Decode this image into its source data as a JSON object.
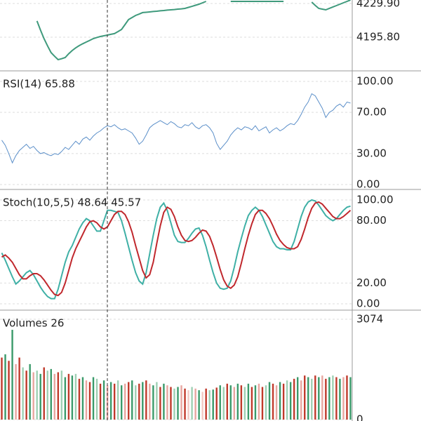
{
  "chart_data": [
    {
      "type": "line",
      "categories": [
        null,
        null,
        null,
        null,
        null,
        null,
        null,
        null,
        null,
        null,
        null,
        null,
        null,
        null,
        null,
        null,
        null,
        null,
        null,
        null,
        null,
        null,
        null,
        null,
        null,
        null,
        null,
        null,
        null,
        null,
        null,
        null,
        null,
        null,
        null,
        null,
        null,
        null,
        null,
        null,
        null,
        null,
        null,
        null,
        null,
        null,
        null,
        null,
        null,
        null,
        null,
        null,
        null,
        null,
        null,
        null,
        null,
        null,
        null,
        null,
        null,
        null,
        null,
        null,
        null,
        null,
        null,
        null,
        null,
        null,
        null,
        null,
        null,
        null,
        null,
        null,
        null,
        null,
        null,
        null,
        null,
        null,
        null,
        null,
        null,
        null,
        null,
        null,
        null,
        null,
        null,
        null,
        null,
        null,
        null,
        null,
        null,
        null,
        null,
        null
      ],
      "series": [
        {
          "color": "#3f9a7c",
          "values": [
            null,
            null,
            null,
            null,
            null,
            null,
            null,
            null,
            null,
            null,
            4212.2,
            4203.0,
            4194.4,
            4187.0,
            4180.2,
            4176.5,
            4173.1,
            4174.0,
            4175.2,
            4179.0,
            4182.3,
            4185.0,
            4187.3,
            4189.2,
            4190.9,
            4192.6,
            4194.4,
            4195.5,
            4196.5,
            4197.2,
            4197.9,
            4198.7,
            4199.4,
            4201.5,
            4203.6,
            4208.6,
            4213.6,
            4215.7,
            4217.8,
            4219.2,
            4220.7,
            4221.0,
            4221.4,
            4221.8,
            4222.1,
            4222.5,
            4222.8,
            4223.2,
            4223.5,
            4223.8,
            4224.2,
            4224.5,
            4224.9,
            4226.0,
            4227.0,
            4228.1,
            4229.2,
            4230.6,
            4232.0,
            null,
            null,
            null,
            null,
            null,
            null,
            4232.0,
            4232.0,
            4232.0,
            4232.0,
            4232.0,
            4232.0,
            4232.0,
            4232.0,
            4232.0,
            4232.0,
            4232.0,
            4232.0,
            4232.0,
            4232.0,
            4232.0,
            4232.0,
            null,
            null,
            null,
            null,
            null,
            null,
            null,
            4231.3,
            4228.0,
            4224.9,
            4224.2,
            4223.5,
            4225.0,
            4226.4,
            4227.8,
            4229.2,
            4230.6,
            4232.0,
            4233.4
          ]
        }
      ],
      "ylim": [
        4161.7,
        4233.45
      ],
      "yticks": [
        {
          "value": 4229.9,
          "label": "4229.90"
        },
        {
          "value": 4195.8,
          "label": "4195.80"
        }
      ]
    },
    {
      "type": "line",
      "title": "RSI(14) 65.88",
      "categories": [
        null,
        null,
        null,
        null,
        null,
        null,
        null,
        null,
        null,
        null,
        null,
        null,
        null,
        null,
        null,
        null,
        null,
        null,
        null,
        null,
        null,
        null,
        null,
        null,
        null,
        null,
        null,
        null,
        null,
        null,
        null,
        null,
        null,
        null,
        null,
        null,
        null,
        null,
        null,
        null,
        null,
        null,
        null,
        null,
        null,
        null,
        null,
        null,
        null,
        null,
        null,
        null,
        null,
        null,
        null,
        null,
        null,
        null,
        null,
        null,
        null,
        null,
        null,
        null,
        null,
        null,
        null,
        null,
        null,
        null,
        null,
        null,
        null,
        null,
        null,
        null,
        null,
        null,
        null,
        null,
        null,
        null,
        null,
        null,
        null,
        null,
        null,
        null,
        null,
        null,
        null,
        null,
        null,
        null,
        null,
        null,
        null,
        null,
        null,
        null
      ],
      "series": [
        {
          "color": "#5b8fc9",
          "values": [
            43,
            38,
            30,
            21,
            28,
            33,
            36,
            39,
            35,
            37,
            33,
            30,
            31,
            29,
            28,
            30,
            29,
            32,
            36,
            34,
            38,
            42,
            39,
            44,
            46,
            43,
            47,
            50,
            52,
            55,
            57,
            56,
            58,
            55,
            53,
            54,
            52,
            50,
            45,
            39,
            42,
            48,
            55,
            58,
            60,
            62,
            60,
            58,
            61,
            59,
            56,
            55,
            58,
            57,
            60,
            56,
            54,
            57,
            58,
            55,
            50,
            40,
            34,
            38,
            42,
            48,
            52,
            55,
            53,
            56,
            55,
            53,
            57,
            52,
            54,
            56,
            50,
            53,
            55,
            52,
            54,
            57,
            59,
            58,
            62,
            68,
            75,
            80,
            88,
            86,
            80,
            74,
            65,
            70,
            72,
            76,
            78,
            75,
            80,
            79
          ]
        }
      ],
      "ylim": [
        -4.8,
        110.2
      ],
      "yticks": [
        {
          "value": 100,
          "label": "100.00"
        },
        {
          "value": 70,
          "label": "70.00"
        },
        {
          "value": 30,
          "label": "30.00"
        },
        {
          "value": 0,
          "label": "0.00"
        }
      ]
    },
    {
      "type": "line",
      "title": "Stoch(10,5,5) 48.64 45.57",
      "categories": [
        null,
        null,
        null,
        null,
        null,
        null,
        null,
        null,
        null,
        null,
        null,
        null,
        null,
        null,
        null,
        null,
        null,
        null,
        null,
        null,
        null,
        null,
        null,
        null,
        null,
        null,
        null,
        null,
        null,
        null,
        null,
        null,
        null,
        null,
        null,
        null,
        null,
        null,
        null,
        null,
        null,
        null,
        null,
        null,
        null,
        null,
        null,
        null,
        null,
        null,
        null,
        null,
        null,
        null,
        null,
        null,
        null,
        null,
        null,
        null,
        null,
        null,
        null,
        null,
        null,
        null,
        null,
        null,
        null,
        null,
        null,
        null,
        null,
        null,
        null,
        null,
        null,
        null,
        null,
        null,
        null,
        null,
        null,
        null,
        null,
        null,
        null,
        null,
        null,
        null,
        null,
        null,
        null,
        null,
        null,
        null,
        null,
        null,
        null,
        null
      ],
      "series": [
        {
          "color": "#3fb0a6",
          "values": [
            49,
            42,
            34,
            26,
            19,
            22,
            26,
            30,
            32,
            28,
            22,
            16,
            11,
            7,
            5,
            5,
            14,
            27,
            40,
            50,
            56,
            64,
            72,
            78,
            82,
            80,
            75,
            70,
            70,
            80,
            90,
            90,
            89,
            88,
            80,
            68,
            55,
            42,
            30,
            22,
            19,
            30,
            48,
            66,
            82,
            93,
            97,
            90,
            78,
            66,
            60,
            59,
            59,
            63,
            68,
            72,
            73,
            66,
            55,
            42,
            30,
            20,
            15,
            14,
            15,
            22,
            35,
            50,
            63,
            75,
            85,
            90,
            93,
            90,
            84,
            76,
            68,
            60,
            55,
            53,
            53,
            52,
            52,
            60,
            72,
            84,
            93,
            98,
            100,
            99,
            95,
            90,
            85,
            82,
            80,
            82,
            86,
            90,
            93,
            94
          ]
        },
        {
          "color": "#c0282d",
          "values": [
            45,
            47,
            44,
            40,
            34,
            28,
            24,
            24,
            27,
            29,
            29,
            27,
            23,
            18,
            13,
            9,
            8,
            11,
            20,
            32,
            44,
            53,
            60,
            67,
            74,
            79,
            80,
            78,
            74,
            72,
            74,
            80,
            86,
            89,
            89,
            86,
            79,
            69,
            56,
            44,
            32,
            25,
            28,
            40,
            58,
            75,
            88,
            93,
            91,
            84,
            74,
            66,
            61,
            60,
            61,
            64,
            68,
            71,
            70,
            65,
            56,
            45,
            33,
            23,
            17,
            15,
            18,
            26,
            39,
            53,
            66,
            77,
            86,
            90,
            90,
            87,
            82,
            75,
            67,
            61,
            57,
            54,
            53,
            53,
            55,
            62,
            72,
            83,
            92,
            97,
            98,
            96,
            92,
            88,
            84,
            82,
            82,
            84,
            87,
            90
          ]
        }
      ],
      "ylim": [
        -6.1,
        110.1
      ],
      "yticks": [
        {
          "value": 100,
          "label": "100.00"
        },
        {
          "value": 80,
          "label": "80.00"
        },
        {
          "value": 20,
          "label": "20.00"
        },
        {
          "value": 0,
          "label": "0.00"
        }
      ]
    },
    {
      "type": "bar",
      "title": "Volumes 26",
      "categories": [
        null,
        null,
        null,
        null,
        null,
        null,
        null,
        null,
        null,
        null,
        null,
        null,
        null,
        null,
        null,
        null,
        null,
        null,
        null,
        null,
        null,
        null,
        null,
        null,
        null,
        null,
        null,
        null,
        null,
        null,
        null,
        null,
        null,
        null,
        null,
        null,
        null,
        null,
        null,
        null,
        null,
        null,
        null,
        null,
        null,
        null,
        null,
        null,
        null,
        null,
        null,
        null,
        null,
        null,
        null,
        null,
        null,
        null,
        null,
        null,
        null,
        null,
        null,
        null,
        null,
        null,
        null,
        null,
        null,
        null,
        null,
        null,
        null,
        null,
        null,
        null,
        null,
        null,
        null,
        null,
        null,
        null,
        null,
        null,
        null,
        null,
        null,
        null,
        null,
        null,
        null,
        null,
        null,
        null,
        null,
        null,
        null,
        null,
        null,
        null
      ],
      "values": [
        1900,
        2000,
        1800,
        2750,
        1700,
        1900,
        1600,
        1500,
        1700,
        1450,
        1500,
        1400,
        1600,
        1500,
        1550,
        1400,
        1450,
        1500,
        1300,
        1400,
        1350,
        1400,
        1250,
        1300,
        1200,
        1150,
        1300,
        1250,
        1100,
        1200,
        1050,
        1150,
        1100,
        1200,
        1050,
        1100,
        1150,
        1200,
        1050,
        1100,
        1150,
        1200,
        1100,
        1050,
        1150,
        1000,
        1100,
        1050,
        1000,
        950,
        1000,
        1050,
        950,
        900,
        1000,
        950,
        900,
        850,
        950,
        900,
        920,
        980,
        1050,
        1000,
        1100,
        1050,
        1000,
        1100,
        1050,
        1000,
        1100,
        1000,
        1050,
        1100,
        1000,
        1050,
        1150,
        1100,
        1050,
        1150,
        1100,
        1200,
        1150,
        1250,
        1300,
        1200,
        1350,
        1300,
        1250,
        1350,
        1300,
        1350,
        1250,
        1300,
        1350,
        1300,
        1250,
        1300,
        1350,
        1300
      ],
      "colors": [
        "#c0392b",
        "#3a9a6a",
        "#c0392b",
        "#3a9a6a",
        "#e8a6a0",
        "#c0392b",
        "#9fd0b4",
        "#c0392b",
        "#3a9a6a",
        "#e8a6a0",
        "#9fd0b4",
        "#3a9a6a",
        "#c0392b",
        "#9fd0b4",
        "#3a9a6a",
        "#e8a6a0",
        "#c0392b",
        "#9fd0b4",
        "#3a9a6a",
        "#c0392b",
        "#3a9a6a",
        "#9fd0b4",
        "#c0392b",
        "#3a9a6a",
        "#e8a6a0",
        "#c0392b",
        "#3a9a6a",
        "#9fd0b4",
        "#c0392b",
        "#3a9a6a",
        "#e8a6a0",
        "#3a9a6a",
        "#c0392b",
        "#9fd0b4",
        "#3a9a6a",
        "#e8a6a0",
        "#c0392b",
        "#3a9a6a",
        "#9fd0b4",
        "#c0392b",
        "#3a9a6a",
        "#c0392b",
        "#e8a6a0",
        "#3a9a6a",
        "#9fd0b4",
        "#c0392b",
        "#3a9a6a",
        "#e8a6a0",
        "#c0392b",
        "#9fd0b4",
        "#3a9a6a",
        "#e8a6a0",
        "#c0392b",
        "#f2c9c4",
        "#9fd0b4",
        "#e8a6a0",
        "#3a9a6a",
        "#f2c9c4",
        "#c0392b",
        "#9fd0b4",
        "#3a9a6a",
        "#c0392b",
        "#3a9a6a",
        "#9fd0b4",
        "#c0392b",
        "#3a9a6a",
        "#e8a6a0",
        "#3a9a6a",
        "#c0392b",
        "#9fd0b4",
        "#3a9a6a",
        "#c0392b",
        "#3a9a6a",
        "#e8a6a0",
        "#c0392b",
        "#9fd0b4",
        "#3a9a6a",
        "#c0392b",
        "#e8a6a0",
        "#3a9a6a",
        "#c0392b",
        "#9fd0b4",
        "#3a9a6a",
        "#c0392b",
        "#3a9a6a",
        "#e8a6a0",
        "#c0392b",
        "#3a9a6a",
        "#9fd0b4",
        "#c0392b",
        "#3a9a6a",
        "#e8a6a0",
        "#c0392b",
        "#3a9a6a",
        "#9fd0b4",
        "#c0392b",
        "#3a9a6a",
        "#e8a6a0",
        "#c0392b",
        "#3a9a6a"
      ],
      "ylim": [
        -43,
        3353
      ],
      "yticks": [
        3074,
        0
      ]
    }
  ]
}
